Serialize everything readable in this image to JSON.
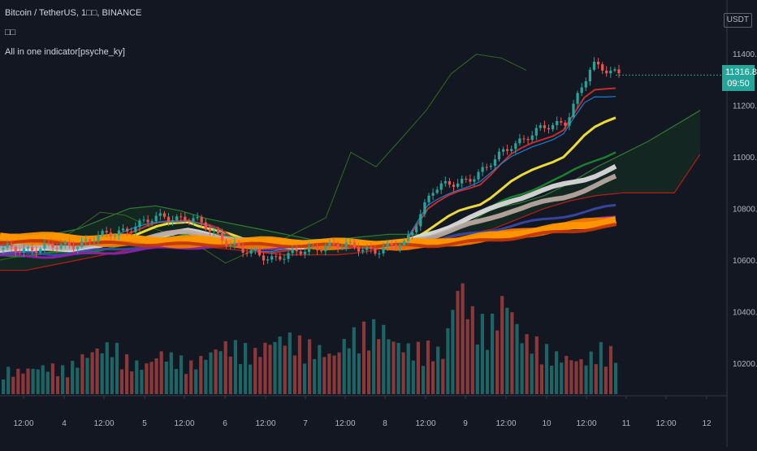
{
  "legend": {
    "symbol": "Bitcoin / TetherUS, 1□□, BINANCE",
    "volume_label": "□□",
    "indicator": "All in one indicator[psyche_ky]"
  },
  "currency_button": "USDT",
  "current_price": {
    "value": "11316.80",
    "countdown": "09:50"
  },
  "colors": {
    "background": "#131722",
    "up": "#26a69a",
    "down": "#ef5350",
    "price_tag": "#26a69a"
  },
  "chart_data": {
    "type": "line",
    "title": "Bitcoin / TetherUS, 1□□, BINANCE",
    "x_tick_labels": [
      "12:00",
      "4",
      "12:00",
      "5",
      "12:00",
      "6",
      "12:00",
      "7",
      "12:00",
      "8",
      "12:00",
      "9",
      "12:00",
      "10",
      "12:00",
      "11",
      "12:00",
      "12"
    ],
    "y_tick_labels": [
      "11400.00",
      "11200.00",
      "11000.00",
      "10800.00",
      "10600.00",
      "10400.00",
      "10200.00"
    ],
    "y_ticks": [
      11400,
      11200,
      11000,
      10800,
      10600,
      10400,
      10200
    ],
    "grid": false,
    "price_anchors": [
      10640,
      10645,
      10650,
      10670,
      10700,
      10735,
      10770,
      10760,
      10700,
      10630,
      10610,
      10625,
      10660,
      10650,
      10640,
      10660,
      10870,
      10900,
      10950,
      11050,
      11100,
      11140,
      11350,
      11330
    ],
    "series": [
      {
        "color": "#ffeb3b",
        "values": [
          10660,
          10660,
          10655,
          10660,
          10680,
          10700,
          10730,
          10750,
          10720,
          10680,
          10650,
          10650,
          10660,
          10660,
          10650,
          10660,
          10720,
          10780,
          10820,
          10900,
          10950,
          11000,
          11100,
          11150
        ]
      },
      {
        "color": "#d32f2f",
        "values": [
          10655,
          10650,
          10650,
          10658,
          10685,
          10710,
          10745,
          10760,
          10730,
          10660,
          10630,
          10635,
          10655,
          10660,
          10645,
          10655,
          10800,
          10860,
          10900,
          11000,
          11060,
          11100,
          11250,
          11270
        ]
      },
      {
        "color": "#1e88e5",
        "values": [
          10650,
          10648,
          10650,
          10660,
          10690,
          10720,
          10750,
          10755,
          10720,
          10660,
          10630,
          10640,
          10660,
          10660,
          10645,
          10655,
          10810,
          10870,
          10910,
          10990,
          11050,
          11080,
          11230,
          11240
        ]
      },
      {
        "color": "#1b8a2a",
        "values": [
          10620,
          10620,
          10625,
          10630,
          10645,
          10660,
          10680,
          10700,
          10700,
          10690,
          10670,
          10660,
          10660,
          10660,
          10660,
          10660,
          10700,
          10740,
          10780,
          10840,
          10880,
          10920,
          10980,
          11020
        ]
      },
      {
        "color": "#e0e0e0",
        "values": [
          10640,
          10640,
          10640,
          10645,
          10660,
          10675,
          10700,
          10710,
          10695,
          10670,
          10655,
          10655,
          10658,
          10660,
          10658,
          10660,
          10700,
          10740,
          10780,
          10830,
          10860,
          10890,
          10920,
          10960
        ]
      },
      {
        "color": "#bcaaa4",
        "values": [
          10650,
          10650,
          10650,
          10655,
          10665,
          10680,
          10700,
          10705,
          10695,
          10675,
          10665,
          10663,
          10665,
          10665,
          10663,
          10665,
          10690,
          10720,
          10750,
          10790,
          10815,
          10840,
          10880,
          10920
        ]
      },
      {
        "color": "#3949ab",
        "values": [
          10625,
          10625,
          10625,
          10630,
          10640,
          10650,
          10660,
          10665,
          10665,
          10660,
          10655,
          10655,
          10657,
          10657,
          10656,
          10658,
          10672,
          10690,
          10710,
          10730,
          10750,
          10770,
          10790,
          10810
        ]
      },
      {
        "color": "#8e24aa",
        "values": [
          10615,
          10615,
          10615,
          10620,
          10628,
          10637,
          10645,
          10650,
          10650,
          10650,
          10648,
          10648,
          10650,
          10650,
          10650,
          10651,
          10663,
          10675,
          10690,
          10705,
          10720,
          10735,
          10750,
          10770
        ]
      },
      {
        "color": "#f57c00",
        "values": [
          10680,
          10678,
          10675,
          10672,
          10670,
          10668,
          10666,
          10665,
          10664,
          10662,
          10660,
          10659,
          10658,
          10657,
          10656,
          10656,
          10660,
          10672,
          10686,
          10700,
          10715,
          10730,
          10745,
          10760
        ]
      },
      {
        "color": "#ef6c00",
        "values": [
          10690,
          10687,
          10684,
          10681,
          10678,
          10676,
          10674,
          10672,
          10670,
          10668,
          10666,
          10664,
          10663,
          10662,
          10661,
          10661,
          10663,
          10672,
          10684,
          10696,
          10710,
          10722,
          10736,
          10750
        ]
      },
      {
        "color": "#ff9800",
        "values": [
          10695,
          10692,
          10689,
          10686,
          10684,
          10682,
          10680,
          10678,
          10676,
          10674,
          10672,
          10670,
          10668,
          10667,
          10666,
          10665,
          10667,
          10676,
          10688,
          10700,
          10713,
          10726,
          10740,
          10754
        ]
      },
      {
        "color": "#bf360c",
        "values": [
          10672,
          10670,
          10668,
          10666,
          10664,
          10662,
          10661,
          10660,
          10660,
          10659,
          10658,
          10657,
          10656,
          10655,
          10655,
          10655,
          10657,
          10664,
          10674,
          10685,
          10697,
          10709,
          10721,
          10733
        ]
      }
    ],
    "cloud": {
      "upper": [
        10620,
        10640,
        10700,
        10720,
        10760,
        10800,
        10810,
        10790,
        10760,
        10740,
        10720,
        10700,
        10680,
        10680,
        10690,
        10700,
        10700,
        10700,
        10740,
        10800,
        10820,
        10850,
        10900,
        10960,
        11010,
        11060,
        11120,
        11180
      ],
      "lower": [
        10560,
        10560,
        10580,
        10600,
        10620,
        10640,
        10650,
        10650,
        10650,
        10640,
        10630,
        10620,
        10620,
        10620,
        10630,
        10650,
        10660,
        10680,
        10700,
        10720,
        10760,
        10800,
        10830,
        10850,
        10860,
        10860,
        10860,
        11010
      ]
    },
    "lagging_span": [
      10600,
      10620,
      10660,
      10720,
      10780,
      10780,
      10720,
      10700,
      10640,
      10600,
      10620,
      10680,
      10700,
      10780,
      11000,
      10980,
      11050,
      11200,
      11300,
      11420,
      11360,
      11360
    ],
    "volume": [
      30,
      28,
      32,
      34,
      30,
      45,
      55,
      60,
      40,
      34,
      50,
      44,
      36,
      48,
      60,
      58,
      50,
      64,
      70,
      62,
      56,
      46,
      70,
      78,
      84,
      62,
      55,
      58,
      50,
      140,
      90,
      82,
      120,
      70,
      62,
      48,
      44,
      40,
      56,
      50
    ]
  }
}
